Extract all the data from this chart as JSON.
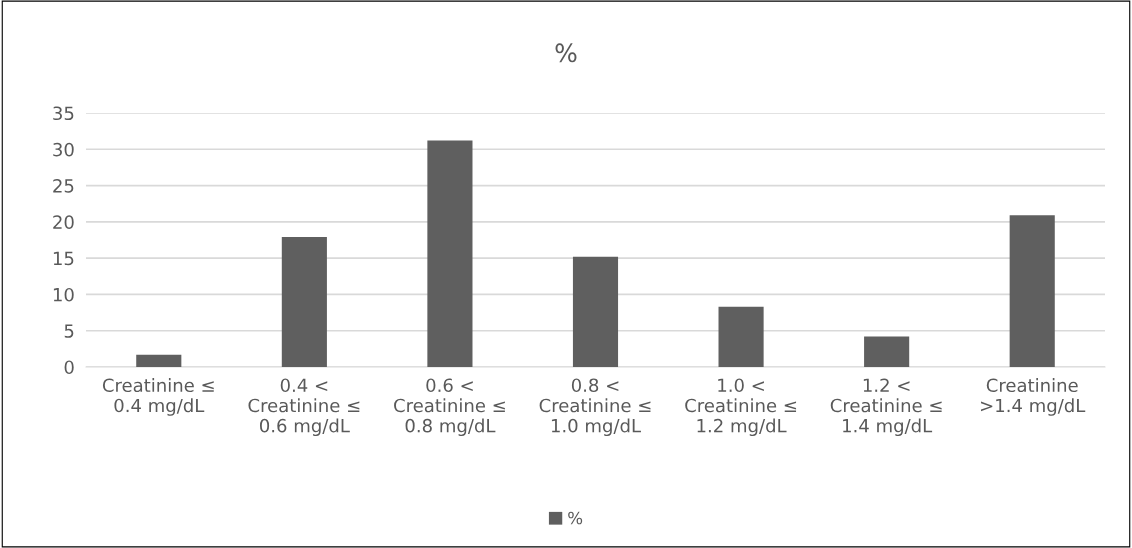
{
  "chart_data": {
    "type": "bar",
    "title": "%",
    "categories": [
      "Creatinine ≤\n0.4 mg/dL",
      "0.4 <\nCreatinine ≤\n0.6 mg/dL",
      "0.6 <\nCreatinine ≤\n0.8 mg/dL",
      "0.8 <\nCreatinine ≤\n1.0 mg/dL",
      "1.0 <\nCreatinine ≤\n1.2 mg/dL",
      "1.2 <\nCreatinine ≤\n1.4 mg/dL",
      "Creatinine\n>1.4 mg/dL"
    ],
    "series": [
      {
        "name": "%",
        "color": "#5f5f5f",
        "values": [
          1.7,
          17.9,
          31.2,
          15.2,
          8.3,
          4.2,
          20.9
        ]
      }
    ],
    "ylim": [
      0,
      35
    ],
    "yticks": [
      0,
      5,
      10,
      15,
      20,
      25,
      30,
      35
    ],
    "grid": "y",
    "legend": "bottom"
  }
}
